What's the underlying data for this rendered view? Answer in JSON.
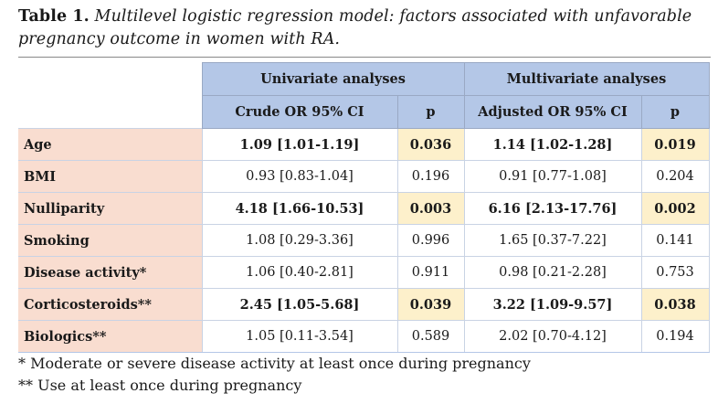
{
  "caption": {
    "label": "Table 1.",
    "text": "Multilevel logistic regression model: factors associated with unfavorable pregnancy outcome in women with RA."
  },
  "table": {
    "group_headers": [
      "Univariate analyses",
      "Multivariate analyses"
    ],
    "column_headers": [
      "Crude OR 95% CI",
      "p",
      "Adjusted OR 95% CI",
      "p"
    ],
    "rows": [
      {
        "label": "Age",
        "crude": "1.09 [1.01-1.19]",
        "p1": "0.036",
        "adjusted": "1.14 [1.02-1.28]",
        "p2": "0.019",
        "significant": true
      },
      {
        "label": "BMI",
        "crude": "0.93 [0.83-1.04]",
        "p1": "0.196",
        "adjusted": "0.91 [0.77-1.08]",
        "p2": "0.204",
        "significant": false
      },
      {
        "label": "Nulliparity",
        "crude": "4.18 [1.66-10.53]",
        "p1": "0.003",
        "adjusted": "6.16 [2.13-17.76]",
        "p2": "0.002",
        "significant": true
      },
      {
        "label": "Smoking",
        "crude": "1.08 [0.29-3.36]",
        "p1": "0.996",
        "adjusted": "1.65 [0.37-7.22]",
        "p2": "0.141",
        "significant": false
      },
      {
        "label": "Disease activity*",
        "crude": "1.06 [0.40-2.81]",
        "p1": "0.911",
        "adjusted": "0.98 [0.21-2.28]",
        "p2": "0.753",
        "significant": false
      },
      {
        "label": "Corticosteroids**",
        "crude": "2.45 [1.05-5.68]",
        "p1": "0.039",
        "adjusted": "3.22 [1.09-9.57]",
        "p2": "0.038",
        "significant": true
      },
      {
        "label": "Biologics**",
        "crude": "1.05 [0.11-3.54]",
        "p1": "0.589",
        "adjusted": "2.02 [0.70-4.12]",
        "p2": "0.194",
        "significant": false
      }
    ]
  },
  "footnotes": [
    "* Moderate or severe disease activity at least once during pregnancy",
    "** Use at least once during pregnancy"
  ],
  "colors": {
    "header_bg": "#b4c7e7",
    "row_label_bg": "#f9ddd0",
    "significant_p_bg": "#fdf0cb"
  }
}
